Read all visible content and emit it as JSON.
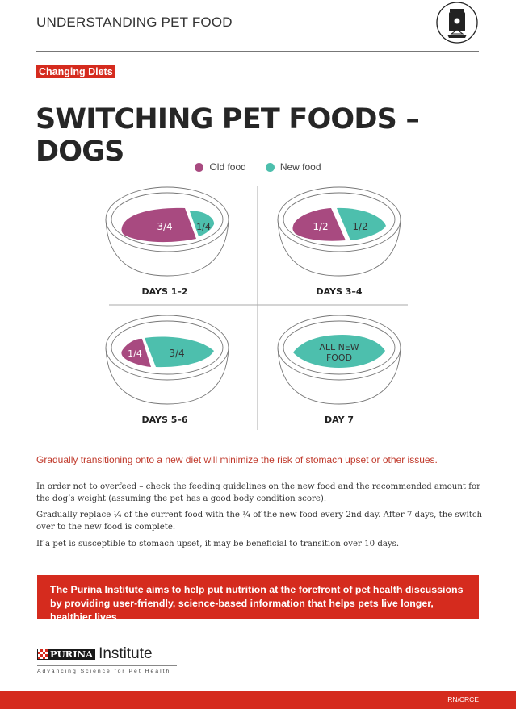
{
  "header": {
    "title": "UNDERSTANDING PET FOOD",
    "icon": "pet-food-bag-icon"
  },
  "badge": "Changing Diets",
  "title": "SWITCHING PET FOODS – DOGS",
  "legend": [
    {
      "label": "Old food",
      "color": "#a84a80"
    },
    {
      "label": "New food",
      "color": "#4dbfad"
    }
  ],
  "bowls": [
    {
      "label": "DAYS 1–2",
      "old": "3/4",
      "new": "1/4",
      "old_fraction": 0.75,
      "new_fraction": 0.25
    },
    {
      "label": "DAYS 3–4",
      "old": "1/2",
      "new": "1/2",
      "old_fraction": 0.5,
      "new_fraction": 0.5
    },
    {
      "label": "DAYS 5–6",
      "old": "1/4",
      "new": "3/4",
      "old_fraction": 0.25,
      "new_fraction": 0.75
    },
    {
      "label": "DAY 7",
      "new_line1": "ALL NEW",
      "new_line2": "FOOD",
      "old_fraction": 0,
      "new_fraction": 1
    }
  ],
  "lead": "Gradually transitioning onto a new diet will minimize the risk of stomach upset or other issues.",
  "paragraphs": [
    "In order not to overfeed – check the feeding guidelines on the new food and the recommended amount for the dog’s weight (assuming the pet has a good body condition score).",
    "Gradually replace ¼ of the current food with the ¼ of the new food every 2nd day. After 7 days, the switch over to the new food is complete.",
    "If a pet is susceptible to stomach upset, it may be beneficial to transition over 10 days."
  ],
  "mission": "The Purina Institute aims to help put nutrition at the forefront of pet health discussions by providing user-friendly, science-based information that helps pets live longer, healthier lives.",
  "logo": {
    "brand": "PURINA",
    "name": "Institute",
    "tagline": "Advancing Science for Pet Health"
  },
  "footer": {
    "code": "RN/CRCE"
  },
  "colors": {
    "accent": "#d52b1e",
    "old_food": "#a84a80",
    "new_food": "#4dbfad"
  }
}
